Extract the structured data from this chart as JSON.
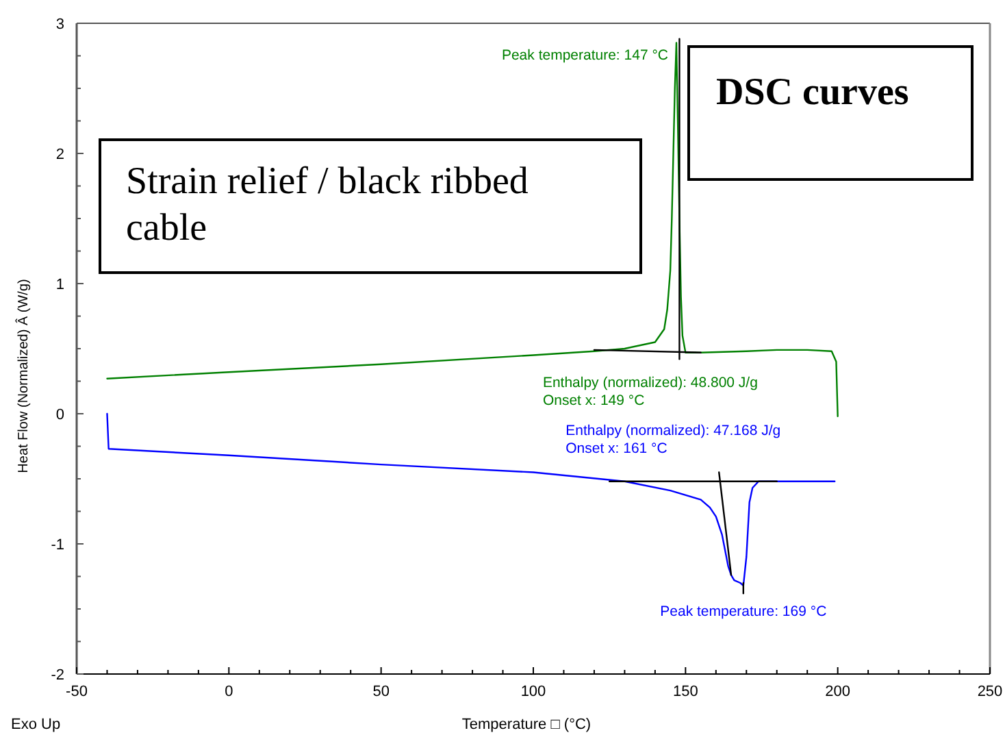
{
  "chart_data": {
    "type": "line",
    "xlabel": "Temperature □ (°C)",
    "ylabel": "Heat Flow (Normalized) Â  (W/g)",
    "xlim": [
      -50,
      250
    ],
    "ylim": [
      -2,
      3
    ],
    "xticks": [
      -50,
      {
        "value": -40,
        "label": null
      },
      {
        "value": -30,
        "label": null
      },
      {
        "value": -20,
        "label": null
      },
      {
        "value": -10,
        "label": null
      },
      0,
      {
        "value": 10,
        "label": null
      },
      {
        "value": 20,
        "label": null
      },
      {
        "value": 30,
        "label": null
      },
      {
        "value": 40,
        "label": null
      },
      50,
      {
        "value": 60,
        "label": null
      },
      {
        "value": 70,
        "label": null
      },
      {
        "value": 80,
        "label": null
      },
      {
        "value": 90,
        "label": null
      },
      100,
      {
        "value": 110,
        "label": null
      },
      {
        "value": 120,
        "label": null
      },
      {
        "value": 130,
        "label": null
      },
      {
        "value": 140,
        "label": null
      },
      150,
      {
        "value": 160,
        "label": null
      },
      {
        "value": 170,
        "label": null
      },
      {
        "value": 180,
        "label": null
      },
      {
        "value": 190,
        "label": null
      },
      200,
      {
        "value": 210,
        "label": null
      },
      {
        "value": 220,
        "label": null
      },
      {
        "value": 230,
        "label": null
      },
      {
        "value": 240,
        "label": null
      },
      250
    ],
    "yticks": [
      -2,
      {
        "value": -1.75,
        "label": null
      },
      {
        "value": -1.5,
        "label": null
      },
      {
        "value": -1.25,
        "label": null
      },
      -1,
      {
        "value": -0.75,
        "label": null
      },
      {
        "value": -0.5,
        "label": null
      },
      {
        "value": -0.25,
        "label": null
      },
      0,
      {
        "value": 0.25,
        "label": null
      },
      {
        "value": 0.5,
        "label": null
      },
      {
        "value": 0.75,
        "label": null
      },
      1,
      {
        "value": 1.25,
        "label": null
      },
      {
        "value": 1.5,
        "label": null
      },
      {
        "value": 1.75,
        "label": null
      },
      2,
      {
        "value": 2.25,
        "label": null
      },
      {
        "value": 2.5,
        "label": null
      },
      {
        "value": 2.75,
        "label": null
      },
      3
    ],
    "grid": false,
    "marker": "none",
    "line_style": "solid",
    "series": [
      {
        "color": "#008000",
        "x": [
          -40,
          0,
          50,
          100,
          120,
          130,
          140,
          143,
          144,
          145,
          145.5,
          146,
          146.5,
          147,
          147.5,
          148,
          148.5,
          149,
          150,
          155,
          170,
          180,
          190,
          198,
          199.5,
          200
        ],
        "values": [
          0.27,
          0.32,
          0.38,
          0.45,
          0.48,
          0.5,
          0.55,
          0.65,
          0.8,
          1.1,
          1.5,
          2.0,
          2.5,
          2.85,
          2.2,
          1.5,
          0.9,
          0.6,
          0.47,
          0.47,
          0.48,
          0.49,
          0.49,
          0.48,
          0.4,
          -0.02
        ]
      },
      {
        "color": "#0000ff",
        "x": [
          -40,
          -39.5,
          0,
          50,
          100,
          130,
          145,
          155,
          158,
          160,
          162,
          164,
          165,
          166,
          168,
          169,
          170,
          171,
          172,
          174,
          180,
          190,
          199
        ],
        "values": [
          0,
          -0.27,
          -0.32,
          -0.39,
          -0.45,
          -0.52,
          -0.59,
          -0.66,
          -0.72,
          -0.79,
          -0.93,
          -1.17,
          -1.24,
          -1.28,
          -1.3,
          -1.32,
          -1.1,
          -0.68,
          -0.57,
          -0.52,
          -0.52,
          -0.52,
          -0.52
        ]
      },
      {
        "color": "#000000",
        "x": [
          120,
          155
        ],
        "values": [
          0.49,
          0.47
        ]
      },
      {
        "color": "#000000",
        "x": [
          148,
          148
        ],
        "values": [
          2.88,
          0.42
        ]
      },
      {
        "color": "#000000",
        "x": [
          125,
          180
        ],
        "values": [
          -0.52,
          -0.52
        ]
      },
      {
        "color": "#000000",
        "x": [
          161,
          165
        ],
        "values": [
          -0.45,
          -1.24
        ]
      },
      {
        "color": "#000000",
        "x": [
          169,
          169
        ],
        "values": [
          -1.3,
          -1.38
        ]
      }
    ],
    "annotations": [
      "Strain relief / black ribbed cable",
      "DSC curves",
      "Exo Up",
      {
        "text": "Peak temperature: 147 °C",
        "x": 147,
        "y": 2.85
      },
      {
        "text": "Enthalpy (normalized): 48.800 J/g\nOnset x: 149 °C",
        "x": 149,
        "y": 0.47
      },
      {
        "text": "Enthalpy (normalized): 47.168 J/g\nOnset x: 161 °C",
        "x": 161,
        "y": -0.52
      },
      {
        "text": "Peak temperature: 169 °C",
        "x": 169,
        "y": -1.32
      }
    ]
  }
}
